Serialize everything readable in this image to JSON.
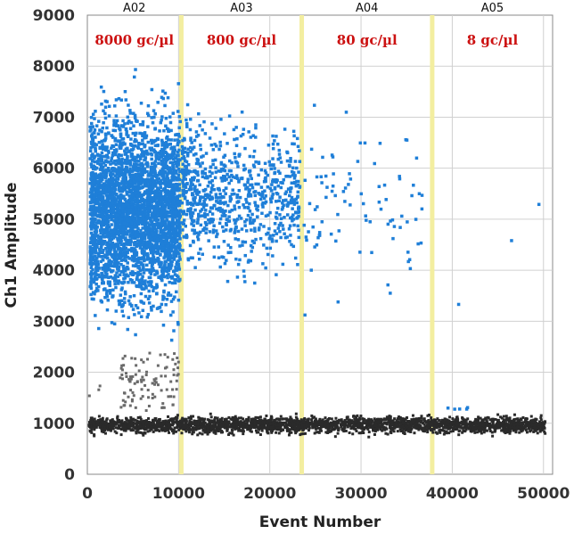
{
  "chart_data": {
    "type": "scatter",
    "title": "",
    "xlabel": "Event Number",
    "ylabel": "Ch1  Amplitude",
    "xlim": [
      0,
      51000
    ],
    "ylim": [
      0,
      9000
    ],
    "xticks": [
      0,
      10000,
      20000,
      30000,
      40000,
      50000
    ],
    "xtick_labels": [
      "0",
      "10000",
      "20000",
      "30000",
      "40000",
      "50000"
    ],
    "yticks": [
      0,
      1000,
      2000,
      3000,
      4000,
      5000,
      6000,
      7000,
      8000,
      9000
    ],
    "ytick_labels": [
      "0",
      "1000",
      "2000",
      "3000",
      "4000",
      "5000",
      "6000",
      "7000",
      "8000",
      "9000"
    ],
    "grid": true,
    "well_boundaries": [
      10300,
      23500,
      37800
    ],
    "wells": [
      {
        "name": "A02",
        "concentration": "8000 gc/µl",
        "x_start": 0,
        "x_end": 10300,
        "positive_count": 3400
      },
      {
        "name": "A03",
        "concentration": "800 gc/µl",
        "x_start": 10300,
        "x_end": 23500,
        "positive_count": 800
      },
      {
        "name": "A04",
        "concentration": "80 gc/µl",
        "x_start": 23500,
        "x_end": 37800,
        "positive_count": 90
      },
      {
        "name": "A05",
        "concentration": "8 gc/µl",
        "x_start": 37800,
        "x_end": 51000,
        "positive_count": 8
      }
    ],
    "series": [
      {
        "color": "#1f7fd8",
        "description_values": {
          "typical_amplitude_range": [
            2500,
            8000
          ]
        }
      },
      {
        "color": "#2a2a2a",
        "description_values": {
          "typical_amplitude_range": [
            700,
            1300
          ]
        }
      }
    ],
    "colors": {
      "positive": "#1f7fd8",
      "negative": "#2a2a2a",
      "intermediate": "#6a6a6a",
      "boundary": "#f3eea0",
      "concentration_text": "#cc1111",
      "grid": "#d0d0d0"
    }
  }
}
